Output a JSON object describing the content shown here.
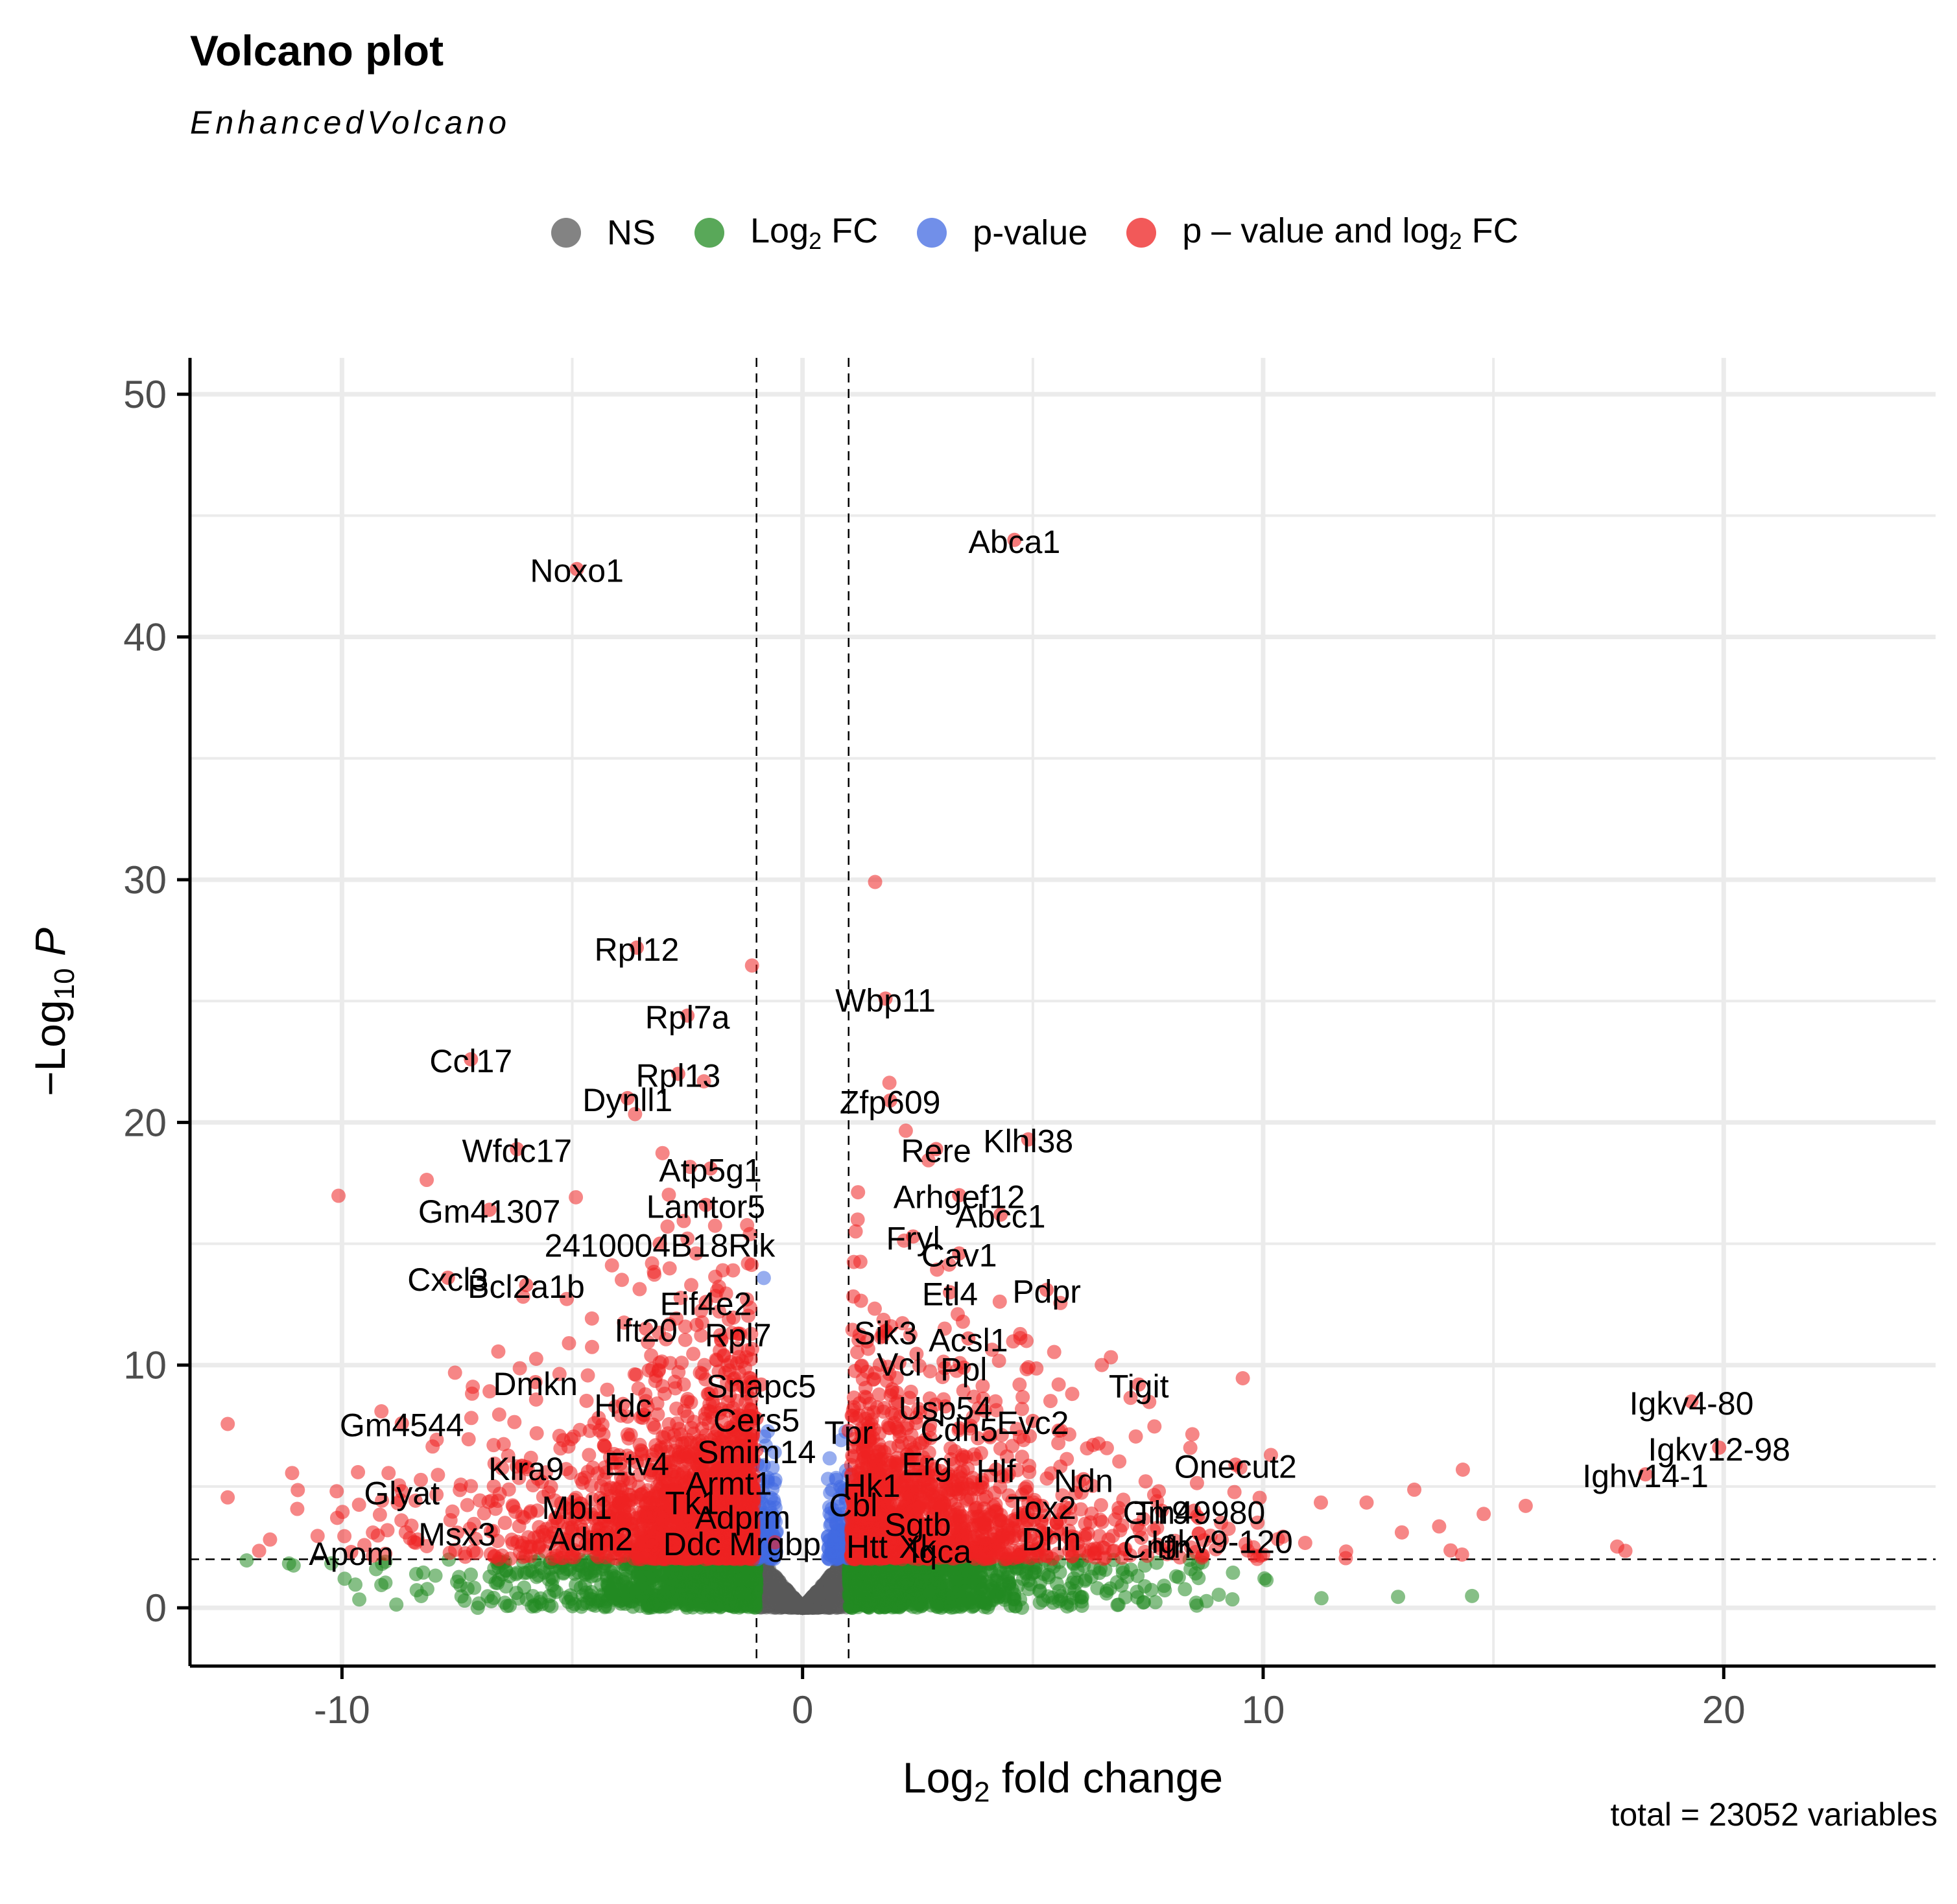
{
  "chart_data": {
    "type": "scatter",
    "title": "Volcano plot",
    "subtitle": "EnhancedVolcano",
    "caption": "total = 23052 variables",
    "xlabel": "Log2 fold change",
    "ylabel": "-Log10 P",
    "xlim": [
      -13.3,
      24.6
    ],
    "ylim": [
      -2.4,
      51.5
    ],
    "xticks": [
      -10,
      0,
      10,
      20
    ],
    "yticks": [
      0,
      10,
      20,
      30,
      40,
      50
    ],
    "grid": true,
    "legend_position": "top",
    "thresholds": {
      "log2fc": [
        -1,
        1
      ],
      "neg_log10_p": 2
    },
    "legend": [
      {
        "key": "NS",
        "label": "NS",
        "color": "#5a5a5a"
      },
      {
        "key": "FC",
        "label": "Log2 FC",
        "color": "#228b22"
      },
      {
        "key": "P",
        "label": "p-value",
        "color": "#4169e1"
      },
      {
        "key": "FC_P",
        "label": "p – value and log2 FC",
        "color": "#ee2222"
      }
    ],
    "labeled_points": [
      {
        "gene": "Abca1",
        "x": 4.6,
        "y": 44.0
      },
      {
        "gene": "Noxo1",
        "x": -4.9,
        "y": 42.8
      },
      {
        "gene": "Rpl12",
        "x": -3.6,
        "y": 27.2
      },
      {
        "gene": "Wbp11",
        "x": 1.8,
        "y": 25.1
      },
      {
        "gene": "Rpl7a",
        "x": -2.5,
        "y": 24.4
      },
      {
        "gene": "Ccl17",
        "x": -7.2,
        "y": 22.6
      },
      {
        "gene": "Rpl13",
        "x": -2.7,
        "y": 22.0
      },
      {
        "gene": "Dynll1",
        "x": -3.8,
        "y": 21.0
      },
      {
        "gene": "Zfp609",
        "x": 1.9,
        "y": 20.9
      },
      {
        "gene": "Rere",
        "x": 2.9,
        "y": 18.9
      },
      {
        "gene": "Klhl38",
        "x": 4.9,
        "y": 19.3
      },
      {
        "gene": "Wfdc17",
        "x": -6.2,
        "y": 18.9
      },
      {
        "gene": "Atp5g1",
        "x": -2.0,
        "y": 18.1
      },
      {
        "gene": "Arhgef12",
        "x": 3.4,
        "y": 17.0
      },
      {
        "gene": "Lamtor5",
        "x": -2.1,
        "y": 16.6
      },
      {
        "gene": "Gm41307",
        "x": -6.8,
        "y": 16.4
      },
      {
        "gene": "Fryl",
        "x": 2.4,
        "y": 15.3
      },
      {
        "gene": "Abcc1",
        "x": 4.3,
        "y": 16.2
      },
      {
        "gene": "2410004B18Rik",
        "x": -3.1,
        "y": 15.0
      },
      {
        "gene": "Cav1",
        "x": 3.4,
        "y": 14.6
      },
      {
        "gene": "Cxcl3",
        "x": -7.7,
        "y": 13.6
      },
      {
        "gene": "Bcl2a1b",
        "x": -6.0,
        "y": 13.3
      },
      {
        "gene": "Etl4",
        "x": 3.2,
        "y": 13.0
      },
      {
        "gene": "Eif4e2",
        "x": -2.1,
        "y": 12.6
      },
      {
        "gene": "Pdpr",
        "x": 5.3,
        "y": 13.1
      },
      {
        "gene": "Ift20",
        "x": -3.4,
        "y": 11.5
      },
      {
        "gene": "Rpl7",
        "x": -1.4,
        "y": 11.3
      },
      {
        "gene": "Sik3",
        "x": 1.8,
        "y": 11.4
      },
      {
        "gene": "Acsl1",
        "x": 3.6,
        "y": 11.1
      },
      {
        "gene": "Vcl",
        "x": 2.1,
        "y": 10.1
      },
      {
        "gene": "Ppl",
        "x": 3.5,
        "y": 9.9
      },
      {
        "gene": "Tigit",
        "x": 7.3,
        "y": 9.2
      },
      {
        "gene": "Dmkn",
        "x": -5.8,
        "y": 9.3
      },
      {
        "gene": "Snapc5",
        "x": -0.9,
        "y": 9.2
      },
      {
        "gene": "Hdc",
        "x": -3.9,
        "y": 8.4
      },
      {
        "gene": "Usp54",
        "x": 3.1,
        "y": 8.3
      },
      {
        "gene": "Igkv4-80",
        "x": 19.3,
        "y": 8.5
      },
      {
        "gene": "Cers5",
        "x": -1.0,
        "y": 7.8
      },
      {
        "gene": "Gm4544",
        "x": -8.7,
        "y": 7.6
      },
      {
        "gene": "Cdh5",
        "x": 3.4,
        "y": 7.4
      },
      {
        "gene": "Evc2",
        "x": 5.0,
        "y": 7.7
      },
      {
        "gene": "Tpr",
        "x": 1.0,
        "y": 7.3
      },
      {
        "gene": "Smim14",
        "x": -1.0,
        "y": 6.5
      },
      {
        "gene": "Igkv12-98",
        "x": 19.9,
        "y": 6.6
      },
      {
        "gene": "Etv4",
        "x": -3.6,
        "y": 6.0
      },
      {
        "gene": "Erg",
        "x": 2.7,
        "y": 6.0
      },
      {
        "gene": "Onecut2",
        "x": 9.4,
        "y": 5.9
      },
      {
        "gene": "Klra9",
        "x": -6.0,
        "y": 5.8
      },
      {
        "gene": "Hlf",
        "x": 4.2,
        "y": 5.7
      },
      {
        "gene": "Ndn",
        "x": 6.1,
        "y": 5.3
      },
      {
        "gene": "Armt1",
        "x": -1.6,
        "y": 5.2
      },
      {
        "gene": "Hk1",
        "x": 1.5,
        "y": 5.1
      },
      {
        "gene": "Ighv14-1",
        "x": 18.3,
        "y": 5.5
      },
      {
        "gene": "Glyat",
        "x": -8.7,
        "y": 4.8
      },
      {
        "gene": "Tk1",
        "x": -2.4,
        "y": 4.4
      },
      {
        "gene": "Mbl1",
        "x": -4.9,
        "y": 4.2
      },
      {
        "gene": "Cbl",
        "x": 1.1,
        "y": 4.3
      },
      {
        "gene": "Tox2",
        "x": 5.2,
        "y": 4.2
      },
      {
        "gene": "Tlr9",
        "x": 7.8,
        "y": 4.0
      },
      {
        "gene": "Gm49980",
        "x": 8.5,
        "y": 4.0
      },
      {
        "gene": "Adprm",
        "x": -1.3,
        "y": 3.8
      },
      {
        "gene": "Sgtb",
        "x": 2.5,
        "y": 3.5
      },
      {
        "gene": "Msx3",
        "x": -7.5,
        "y": 3.1
      },
      {
        "gene": "Adm2",
        "x": -4.6,
        "y": 2.9
      },
      {
        "gene": "Dhh",
        "x": 5.4,
        "y": 2.9
      },
      {
        "gene": "Igkv9-120",
        "x": 9.1,
        "y": 2.8
      },
      {
        "gene": "Ddc",
        "x": -2.4,
        "y": 2.7
      },
      {
        "gene": "Mrgbp",
        "x": -0.6,
        "y": 2.7
      },
      {
        "gene": "Htt",
        "x": 1.4,
        "y": 2.6
      },
      {
        "gene": "Xk",
        "x": 2.5,
        "y": 2.6
      },
      {
        "gene": "Iqca",
        "x": 3.0,
        "y": 2.4
      },
      {
        "gene": "Cnfn",
        "x": 7.7,
        "y": 2.6
      },
      {
        "gene": "Apom",
        "x": -9.8,
        "y": 2.3
      }
    ]
  }
}
